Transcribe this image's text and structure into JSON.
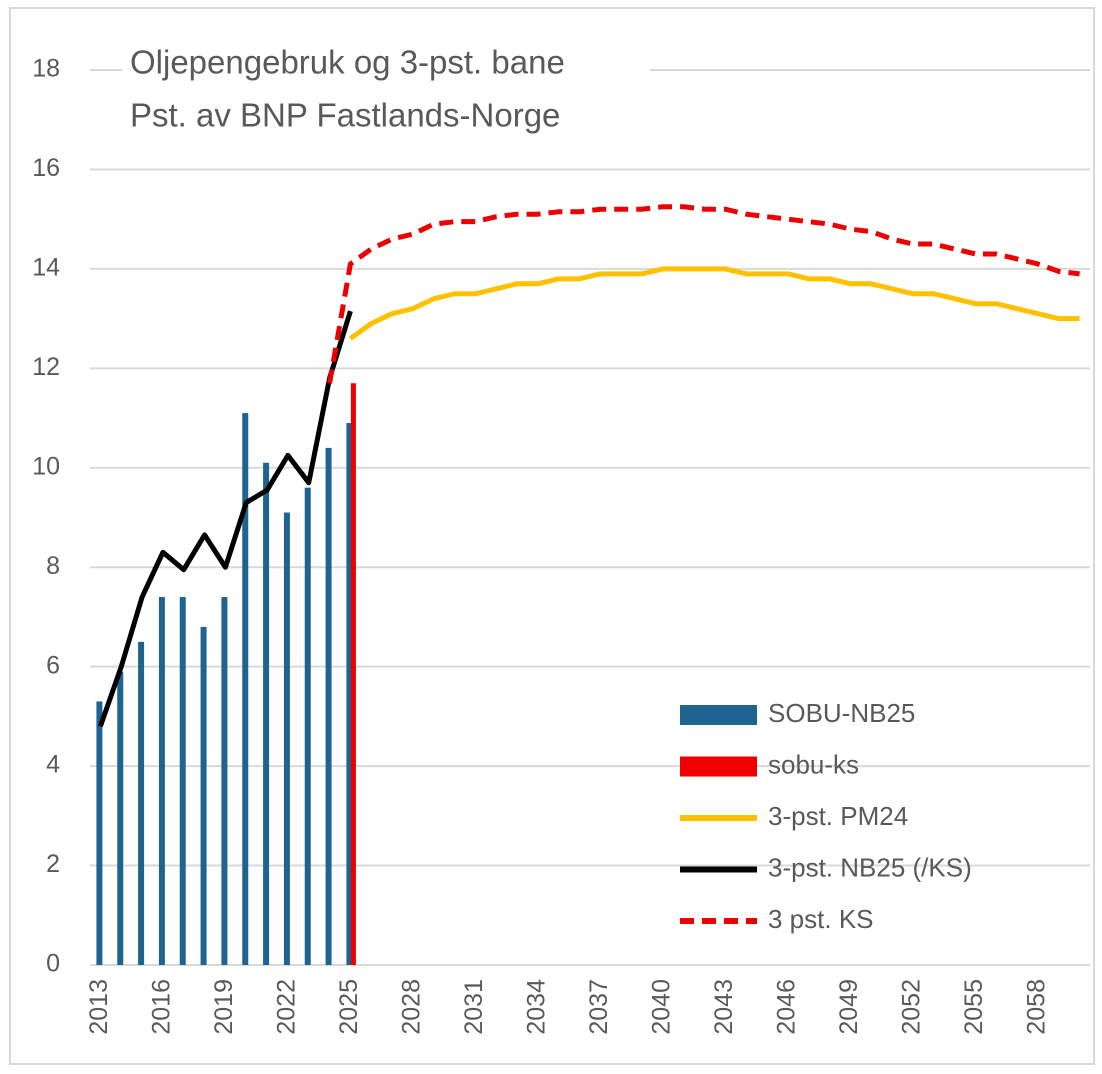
{
  "chart_data": {
    "type": "bar_line",
    "title": "Oljepengebruk og 3-pst. bane",
    "subtitle": "Pst. av BNP Fastlands-Norge",
    "categories": [
      "2013",
      null,
      null,
      "2016",
      null,
      null,
      "2019",
      null,
      null,
      "2022",
      null,
      null,
      "2025",
      null,
      null,
      "2028",
      null,
      null,
      "2031",
      null,
      null,
      "2034",
      null,
      null,
      "2037",
      null,
      null,
      "2040",
      null,
      null,
      "2043",
      null,
      null,
      "2046",
      null,
      null,
      "2049",
      null,
      null,
      "2052",
      null,
      null,
      "2055",
      null,
      null,
      "2058",
      null,
      null
    ],
    "ylim": [
      0,
      18
    ],
    "yticks": [
      0,
      2,
      4,
      6,
      8,
      10,
      12,
      14,
      16,
      18
    ],
    "grid": true,
    "legend": "lower right",
    "series": [
      {
        "name": "SOBU-NB25",
        "kind": "bar",
        "color": "#1f6391",
        "values": [
          5.3,
          5.9,
          6.5,
          7.4,
          7.4,
          6.8,
          7.4,
          11.1,
          10.1,
          9.1,
          9.6,
          10.4,
          10.9,
          null,
          null,
          null,
          null,
          null,
          null,
          null,
          null,
          null,
          null,
          null,
          null,
          null,
          null,
          null,
          null,
          null,
          null,
          null,
          null,
          null,
          null,
          null,
          null,
          null,
          null,
          null,
          null,
          null,
          null,
          null,
          null,
          null,
          null,
          null
        ]
      },
      {
        "name": "sobu-ks",
        "kind": "bar",
        "color": "#ee0000",
        "values": [
          null,
          null,
          null,
          null,
          null,
          null,
          null,
          null,
          null,
          null,
          null,
          null,
          11.7,
          null,
          null,
          null,
          null,
          null,
          null,
          null,
          null,
          null,
          null,
          null,
          null,
          null,
          null,
          null,
          null,
          null,
          null,
          null,
          null,
          null,
          null,
          null,
          null,
          null,
          null,
          null,
          null,
          null,
          null,
          null,
          null,
          null,
          null,
          null
        ]
      },
      {
        "name": "3-pst. PM24",
        "kind": "line",
        "color": "#ffc000",
        "dashed": false,
        "values": [
          null,
          null,
          null,
          null,
          null,
          null,
          null,
          null,
          null,
          null,
          null,
          null,
          12.6,
          12.9,
          13.1,
          13.2,
          13.4,
          13.5,
          13.5,
          13.6,
          13.7,
          13.7,
          13.8,
          13.8,
          13.9,
          13.9,
          13.9,
          14.0,
          14.0,
          14.0,
          14.0,
          13.9,
          13.9,
          13.9,
          13.8,
          13.8,
          13.7,
          13.7,
          13.6,
          13.5,
          13.5,
          13.4,
          13.3,
          13.3,
          13.2,
          13.1,
          13.0,
          13.0
        ]
      },
      {
        "name": "3-pst. NB25 (/KS)",
        "kind": "line",
        "color": "#000000",
        "dashed": false,
        "values": [
          4.8,
          6.0,
          7.4,
          8.3,
          7.95,
          8.65,
          8.0,
          9.3,
          9.55,
          10.25,
          9.7,
          11.8,
          13.15,
          null,
          null,
          null,
          null,
          null,
          null,
          null,
          null,
          null,
          null,
          null,
          null,
          null,
          null,
          null,
          null,
          null,
          null,
          null,
          null,
          null,
          null,
          null,
          null,
          null,
          null,
          null,
          null,
          null,
          null,
          null,
          null,
          null,
          null,
          null
        ]
      },
      {
        "name": "3 pst. KS",
        "kind": "line",
        "color": "#ee0000",
        "dashed": true,
        "values": [
          null,
          null,
          null,
          null,
          null,
          null,
          null,
          null,
          null,
          null,
          null,
          11.7,
          14.1,
          14.4,
          14.6,
          14.7,
          14.9,
          14.95,
          14.95,
          15.05,
          15.1,
          15.1,
          15.15,
          15.15,
          15.2,
          15.2,
          15.2,
          15.25,
          15.25,
          15.2,
          15.2,
          15.1,
          15.05,
          15.0,
          14.95,
          14.9,
          14.8,
          14.75,
          14.6,
          14.5,
          14.5,
          14.4,
          14.3,
          14.3,
          14.2,
          14.1,
          13.95,
          13.9
        ]
      }
    ]
  }
}
